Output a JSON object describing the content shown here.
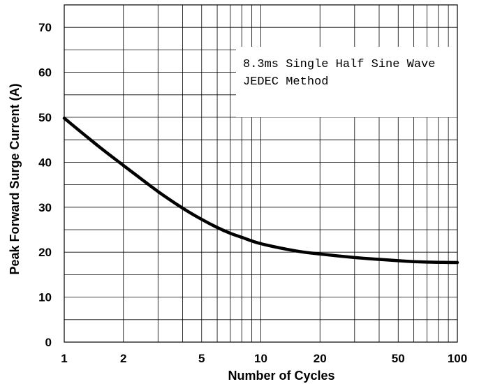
{
  "chart_data": {
    "type": "line",
    "xlabel": "Number of Cycles",
    "ylabel": "Peak Forward Surge Current (A)",
    "x_scale": "log",
    "xlim": [
      1,
      100
    ],
    "ylim": [
      0,
      75
    ],
    "x_ticks": [
      1,
      2,
      5,
      10,
      20,
      50,
      100
    ],
    "y_ticks": [
      0,
      10,
      20,
      30,
      40,
      50,
      60,
      70
    ],
    "grid": true,
    "annotation": {
      "line1": "8.3ms Single Half Sine Wave",
      "line2": "JEDEC Method",
      "placement": "top-right"
    },
    "series": [
      {
        "x": [
          1,
          1.5,
          2,
          3,
          4,
          5,
          6,
          7,
          8,
          10,
          15,
          20,
          30,
          40,
          50,
          60,
          70,
          80,
          100
        ],
        "values": [
          49.8,
          43.5,
          39.3,
          33.5,
          29.8,
          27.3,
          25.5,
          24.2,
          23.3,
          21.9,
          20.3,
          19.6,
          18.8,
          18.4,
          18.1,
          17.9,
          17.8,
          17.75,
          17.7
        ]
      }
    ]
  }
}
